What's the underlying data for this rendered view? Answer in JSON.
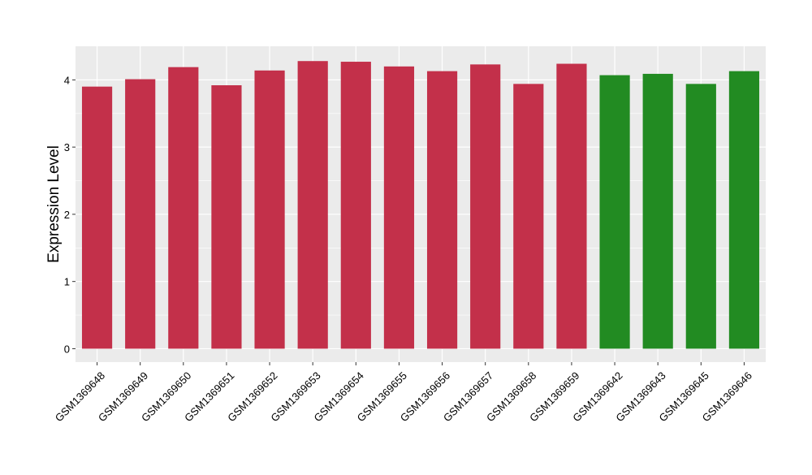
{
  "chart_data": {
    "type": "bar",
    "title": "",
    "xlabel": "",
    "ylabel": "Expression Level",
    "ylim": [
      -0.2,
      4.5
    ],
    "yticks": [
      0,
      1,
      2,
      3,
      4
    ],
    "grid": true,
    "categories": [
      "GSM1369648",
      "GSM1369649",
      "GSM1369650",
      "GSM1369651",
      "GSM1369652",
      "GSM1369653",
      "GSM1369654",
      "GSM1369655",
      "GSM1369656",
      "GSM1369657",
      "GSM1369658",
      "GSM1369659",
      "GSM1369642",
      "GSM1369643",
      "GSM1369645",
      "GSM1369646"
    ],
    "values": [
      3.9,
      4.01,
      4.19,
      3.92,
      4.14,
      4.28,
      4.27,
      4.2,
      4.13,
      4.23,
      3.94,
      4.24,
      4.07,
      4.09,
      3.94,
      4.13
    ],
    "bar_colors": [
      "#C3304A",
      "#C3304A",
      "#C3304A",
      "#C3304A",
      "#C3304A",
      "#C3304A",
      "#C3304A",
      "#C3304A",
      "#C3304A",
      "#C3304A",
      "#C3304A",
      "#C3304A",
      "#228B22",
      "#228B22",
      "#228B22",
      "#228B22"
    ],
    "panel_background": "#EBEBEB",
    "gridline_color": "#FFFFFF"
  }
}
